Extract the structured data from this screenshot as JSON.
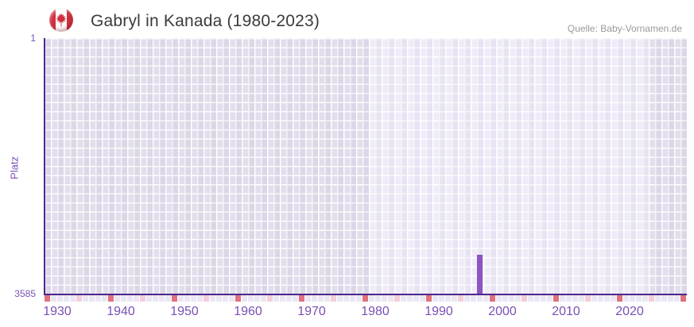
{
  "header": {
    "title": "Gabryl in Kanada (1980-2023)",
    "source": "Quelle: Baby-Vornamen.de",
    "flag_icon": "canada-flag"
  },
  "chart_data": {
    "type": "bar",
    "title": "Gabryl in Kanada (1980-2023)",
    "xlabel": "",
    "ylabel": "Platz",
    "y_axis": {
      "top_label": "1",
      "bottom_label": "3585",
      "min": 1,
      "max": 3585,
      "inverted": true
    },
    "x_axis": {
      "year_start": 1929,
      "year_end": 2029,
      "tick_years": [
        1930,
        1940,
        1950,
        1960,
        1970,
        1980,
        1990,
        2000,
        2010,
        2020
      ]
    },
    "highlight_range": {
      "start": 1980,
      "end": 2023
    },
    "points": [
      {
        "year": 1997,
        "platz": 3040
      }
    ],
    "marker_strip": {
      "major_rule": "years ending in 9",
      "minor_rule": "years ending in 4",
      "major_color": "#e0717e",
      "minor_color": "#f3ced8",
      "plain_color": "#eae6f3"
    },
    "colors": {
      "bar": "#8b55c4",
      "axis": "#4c278c",
      "tick_text": "#7a50b5",
      "plot_bg_in_range": "#efebf7",
      "plot_bg_out_of_range": "#e2deeb",
      "grid_line": "#ffffff",
      "title_text": "#3b3b3b",
      "source_text": "#9a9a9a",
      "flag_red": "#d03040"
    },
    "legend": null,
    "grid": true
  }
}
